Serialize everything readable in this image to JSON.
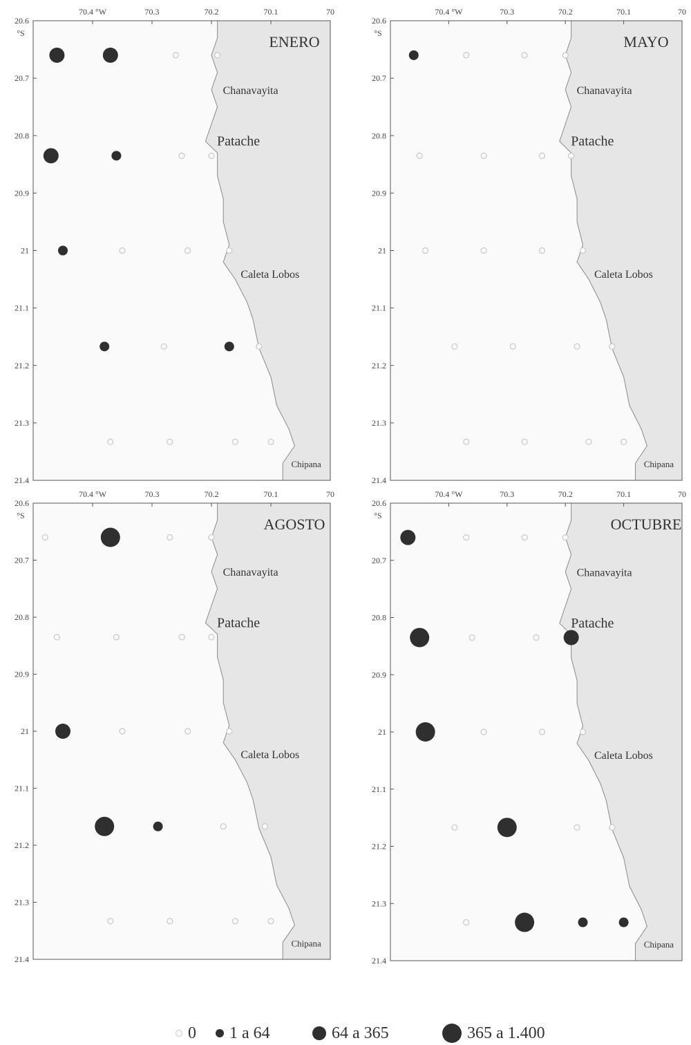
{
  "lon_ticks": [
    {
      "value": 70.4,
      "label": "70.4 °W"
    },
    {
      "value": 70.3,
      "label": "70.3"
    },
    {
      "value": 70.2,
      "label": "70.2"
    },
    {
      "value": 70.1,
      "label": "70.1"
    },
    {
      "value": 70.0,
      "label": "70"
    }
  ],
  "lat_ticks": [
    {
      "value": 20.6,
      "label": "20.6"
    },
    {
      "value": 20.7,
      "label": "20.7"
    },
    {
      "value": 20.8,
      "label": "20.8"
    },
    {
      "value": 20.9,
      "label": "20.9"
    },
    {
      "value": 21.0,
      "label": "21"
    },
    {
      "value": 21.1,
      "label": "21.1"
    },
    {
      "value": 21.2,
      "label": "21.2"
    },
    {
      "value": 21.3,
      "label": "21.3"
    },
    {
      "value": 21.4,
      "label": "21.4"
    }
  ],
  "lat_unit": "°S",
  "coastline": [
    [
      70.19,
      20.6
    ],
    [
      70.19,
      20.63
    ],
    [
      70.2,
      20.66
    ],
    [
      70.19,
      20.69
    ],
    [
      70.2,
      20.72
    ],
    [
      70.19,
      20.75
    ],
    [
      70.2,
      20.78
    ],
    [
      70.21,
      20.81
    ],
    [
      70.19,
      20.83
    ],
    [
      70.19,
      20.87
    ],
    [
      70.18,
      20.91
    ],
    [
      70.18,
      20.95
    ],
    [
      70.17,
      20.99
    ],
    [
      70.18,
      21.02
    ],
    [
      70.16,
      21.05
    ],
    [
      70.14,
      21.09
    ],
    [
      70.13,
      21.12
    ],
    [
      70.12,
      21.17
    ],
    [
      70.1,
      21.22
    ],
    [
      70.09,
      21.27
    ],
    [
      70.07,
      21.31
    ],
    [
      70.06,
      21.34
    ],
    [
      70.08,
      21.37
    ],
    [
      70.08,
      21.4
    ]
  ],
  "places": [
    {
      "name": "Chanavayita",
      "lon": 70.19,
      "lat": 20.72
    },
    {
      "name": "Patache",
      "lon": 70.2,
      "lat": 20.81
    },
    {
      "name": "Caleta Lobos",
      "lon": 70.16,
      "lat": 21.04
    },
    {
      "name": "Chipana",
      "lon": 70.075,
      "lat": 21.37
    }
  ],
  "panels": [
    {
      "title": "ENERO",
      "stations": [
        {
          "lon": 70.46,
          "lat": 20.66,
          "cls": 2
        },
        {
          "lon": 70.37,
          "lat": 20.66,
          "cls": 2
        },
        {
          "lon": 70.26,
          "lat": 20.66,
          "cls": 0
        },
        {
          "lon": 70.19,
          "lat": 20.66,
          "cls": 0
        },
        {
          "lon": 70.47,
          "lat": 20.835,
          "cls": 2
        },
        {
          "lon": 70.36,
          "lat": 20.835,
          "cls": 1
        },
        {
          "lon": 70.25,
          "lat": 20.835,
          "cls": 0
        },
        {
          "lon": 70.2,
          "lat": 20.835,
          "cls": 0
        },
        {
          "lon": 70.45,
          "lat": 21.0,
          "cls": 1
        },
        {
          "lon": 70.35,
          "lat": 21.0,
          "cls": 0
        },
        {
          "lon": 70.24,
          "lat": 21.0,
          "cls": 0
        },
        {
          "lon": 70.17,
          "lat": 21.0,
          "cls": 0
        },
        {
          "lon": 70.38,
          "lat": 21.167,
          "cls": 1
        },
        {
          "lon": 70.28,
          "lat": 21.167,
          "cls": 0
        },
        {
          "lon": 70.17,
          "lat": 21.167,
          "cls": 1
        },
        {
          "lon": 70.12,
          "lat": 21.167,
          "cls": 0
        },
        {
          "lon": 70.37,
          "lat": 21.333,
          "cls": 0
        },
        {
          "lon": 70.27,
          "lat": 21.333,
          "cls": 0
        },
        {
          "lon": 70.16,
          "lat": 21.333,
          "cls": 0
        },
        {
          "lon": 70.1,
          "lat": 21.333,
          "cls": 0
        }
      ]
    },
    {
      "title": "MAYO",
      "stations": [
        {
          "lon": 70.46,
          "lat": 20.66,
          "cls": 1
        },
        {
          "lon": 70.37,
          "lat": 20.66,
          "cls": 0
        },
        {
          "lon": 70.27,
          "lat": 20.66,
          "cls": 0
        },
        {
          "lon": 70.2,
          "lat": 20.66,
          "cls": 0
        },
        {
          "lon": 70.45,
          "lat": 20.835,
          "cls": 0
        },
        {
          "lon": 70.34,
          "lat": 20.835,
          "cls": 0
        },
        {
          "lon": 70.24,
          "lat": 20.835,
          "cls": 0
        },
        {
          "lon": 70.19,
          "lat": 20.835,
          "cls": 0
        },
        {
          "lon": 70.44,
          "lat": 21.0,
          "cls": 0
        },
        {
          "lon": 70.34,
          "lat": 21.0,
          "cls": 0
        },
        {
          "lon": 70.24,
          "lat": 21.0,
          "cls": 0
        },
        {
          "lon": 70.17,
          "lat": 21.0,
          "cls": 0
        },
        {
          "lon": 70.39,
          "lat": 21.167,
          "cls": 0
        },
        {
          "lon": 70.29,
          "lat": 21.167,
          "cls": 0
        },
        {
          "lon": 70.18,
          "lat": 21.167,
          "cls": 0
        },
        {
          "lon": 70.12,
          "lat": 21.167,
          "cls": 0
        },
        {
          "lon": 70.37,
          "lat": 21.333,
          "cls": 0
        },
        {
          "lon": 70.27,
          "lat": 21.333,
          "cls": 0
        },
        {
          "lon": 70.16,
          "lat": 21.333,
          "cls": 0
        },
        {
          "lon": 70.1,
          "lat": 21.333,
          "cls": 0
        }
      ]
    },
    {
      "title": "AGOSTO",
      "stations": [
        {
          "lon": 70.48,
          "lat": 20.66,
          "cls": 0
        },
        {
          "lon": 70.37,
          "lat": 20.66,
          "cls": 3
        },
        {
          "lon": 70.27,
          "lat": 20.66,
          "cls": 0
        },
        {
          "lon": 70.2,
          "lat": 20.66,
          "cls": 0
        },
        {
          "lon": 70.46,
          "lat": 20.835,
          "cls": 0
        },
        {
          "lon": 70.36,
          "lat": 20.835,
          "cls": 0
        },
        {
          "lon": 70.25,
          "lat": 20.835,
          "cls": 0
        },
        {
          "lon": 70.2,
          "lat": 20.835,
          "cls": 0
        },
        {
          "lon": 70.45,
          "lat": 21.0,
          "cls": 2
        },
        {
          "lon": 70.35,
          "lat": 21.0,
          "cls": 0
        },
        {
          "lon": 70.24,
          "lat": 21.0,
          "cls": 0
        },
        {
          "lon": 70.17,
          "lat": 21.0,
          "cls": 0
        },
        {
          "lon": 70.38,
          "lat": 21.167,
          "cls": 3
        },
        {
          "lon": 70.29,
          "lat": 21.167,
          "cls": 1
        },
        {
          "lon": 70.18,
          "lat": 21.167,
          "cls": 0
        },
        {
          "lon": 70.11,
          "lat": 21.167,
          "cls": 0
        },
        {
          "lon": 70.37,
          "lat": 21.333,
          "cls": 0
        },
        {
          "lon": 70.27,
          "lat": 21.333,
          "cls": 0
        },
        {
          "lon": 70.16,
          "lat": 21.333,
          "cls": 0
        },
        {
          "lon": 70.1,
          "lat": 21.333,
          "cls": 0
        }
      ]
    },
    {
      "title": "OCTUBRE",
      "stations": [
        {
          "lon": 70.47,
          "lat": 20.66,
          "cls": 2
        },
        {
          "lon": 70.37,
          "lat": 20.66,
          "cls": 0
        },
        {
          "lon": 70.27,
          "lat": 20.66,
          "cls": 0
        },
        {
          "lon": 70.2,
          "lat": 20.66,
          "cls": 0
        },
        {
          "lon": 70.45,
          "lat": 20.835,
          "cls": 3
        },
        {
          "lon": 70.36,
          "lat": 20.835,
          "cls": 0
        },
        {
          "lon": 70.25,
          "lat": 20.835,
          "cls": 0
        },
        {
          "lon": 70.19,
          "lat": 20.835,
          "cls": 2
        },
        {
          "lon": 70.44,
          "lat": 21.0,
          "cls": 3
        },
        {
          "lon": 70.34,
          "lat": 21.0,
          "cls": 0
        },
        {
          "lon": 70.24,
          "lat": 21.0,
          "cls": 0
        },
        {
          "lon": 70.17,
          "lat": 21.0,
          "cls": 0
        },
        {
          "lon": 70.39,
          "lat": 21.167,
          "cls": 0
        },
        {
          "lon": 70.3,
          "lat": 21.167,
          "cls": 3
        },
        {
          "lon": 70.18,
          "lat": 21.167,
          "cls": 0
        },
        {
          "lon": 70.12,
          "lat": 21.167,
          "cls": 0
        },
        {
          "lon": 70.37,
          "lat": 21.333,
          "cls": 0
        },
        {
          "lon": 70.27,
          "lat": 21.333,
          "cls": 3
        },
        {
          "lon": 70.17,
          "lat": 21.333,
          "cls": 1
        },
        {
          "lon": 70.1,
          "lat": 21.333,
          "cls": 1
        }
      ]
    }
  ],
  "legend": [
    {
      "label": "0",
      "symbol": "zero"
    },
    {
      "label": "1 a 64",
      "symbol": "s1"
    },
    {
      "label": "64 a 365",
      "symbol": "s2"
    },
    {
      "label": "365 a 1.400",
      "symbol": "s3"
    }
  ],
  "colors": {
    "land": "#e6e6e6",
    "sea": "#fafafa",
    "marker": "#2f2f2f",
    "zero_marker": "#c8c8c8",
    "frame": "#555555"
  }
}
